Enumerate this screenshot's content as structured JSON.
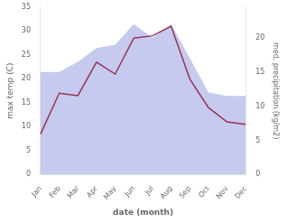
{
  "chart_data": {
    "type": "line",
    "categories": [
      "Jan",
      "Feb",
      "Mar",
      "Apr",
      "May",
      "Jun",
      "Jul",
      "Aug",
      "Sep",
      "Oct",
      "Nov",
      "Dec"
    ],
    "series": [
      {
        "type": "line",
        "color": "#993355",
        "values": [
          8.5,
          17.0,
          16.5,
          23.5,
          21.0,
          28.5,
          29.0,
          31.0,
          20.0,
          14.0,
          11.0,
          10.5
        ]
      },
      {
        "type": "area",
        "color": "#c5caee",
        "axis": "y2",
        "values": [
          15.0,
          15.0,
          16.5,
          18.5,
          19.0,
          22.0,
          20.0,
          22.0,
          17.0,
          12.0,
          11.5,
          11.5
        ]
      }
    ],
    "xlabel": "date (month)",
    "ylabel": "max temp (C)",
    "y2label": "med. precipitation (kg/m2)",
    "ylim": [
      0,
      35
    ],
    "yticks": [
      0,
      5,
      10,
      15,
      20,
      25,
      30,
      35
    ],
    "y2lim": [
      0,
      24.5
    ],
    "y2ticks": [
      0,
      5,
      10,
      15,
      20
    ],
    "grid": false
  }
}
